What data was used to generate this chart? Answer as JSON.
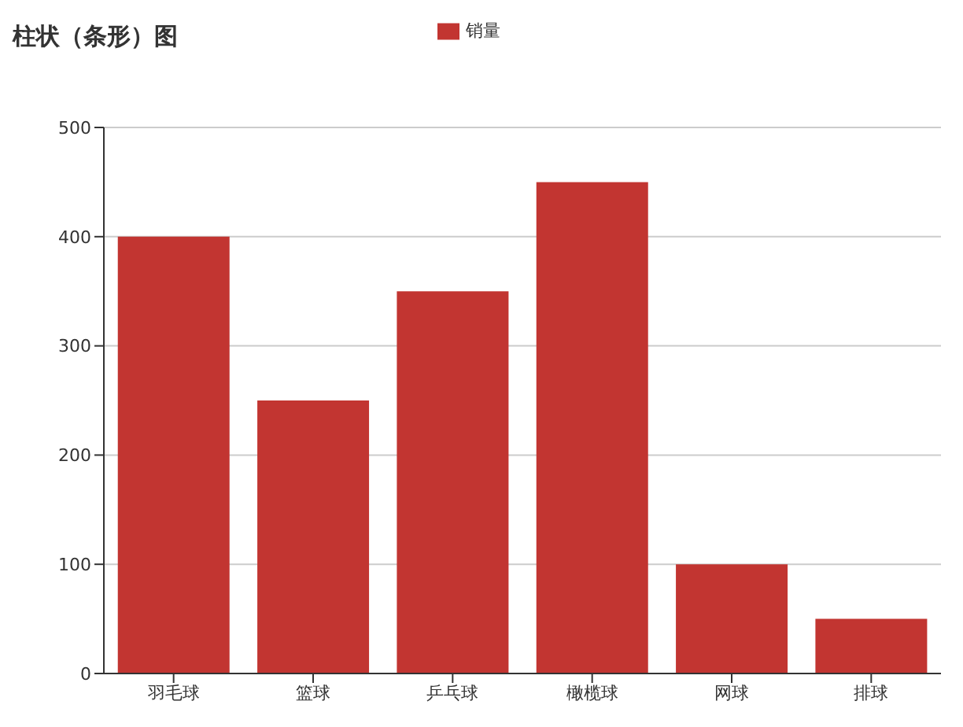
{
  "chart_data": {
    "type": "bar",
    "title": "柱状（条形）图",
    "categories": [
      "羽毛球",
      "篮球",
      "乒乓球",
      "橄榄球",
      "网球",
      "排球"
    ],
    "series": [
      {
        "name": "销量",
        "color": "#c23531",
        "values": [
          400,
          250,
          350,
          450,
          100,
          50
        ]
      }
    ],
    "ylim": [
      0,
      500
    ],
    "yticks": [
      0,
      100,
      200,
      300,
      400,
      500
    ],
    "grid": "y",
    "legend": "top"
  }
}
